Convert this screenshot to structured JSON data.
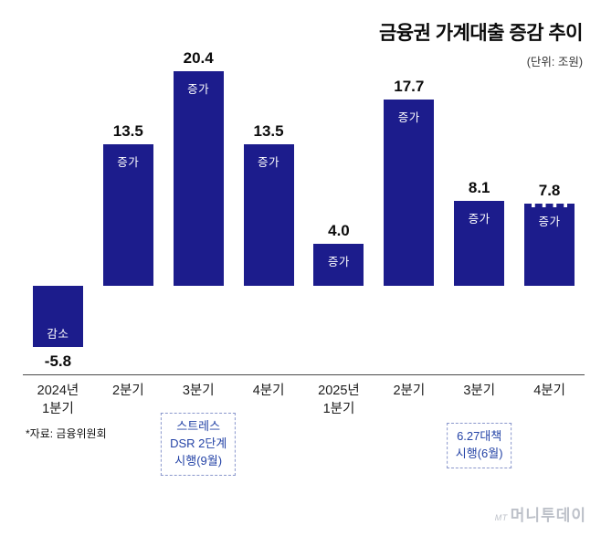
{
  "title": "금융권 가계대출 증감 추이",
  "unit_label": "(단위: 조원)",
  "source_note": "*자료: 금융위원회",
  "watermark_prefix": "MT",
  "watermark_name": "머니투데이",
  "colors": {
    "bar": "#1c1c8c",
    "axis": "#4a4a4a",
    "annotation_text": "#2443a6",
    "annotation_border": "#8a97cc"
  },
  "chart_data": {
    "type": "bar",
    "title": "금융권 가계대출 증감 추이",
    "unit": "조원",
    "xlabel": "",
    "ylabel": "",
    "ylim": [
      -8,
      22
    ],
    "grid": false,
    "legend": false,
    "categories": [
      "2024년\n1분기",
      "2분기",
      "3분기",
      "4분기",
      "2025년\n1분기",
      "2분기",
      "3분기",
      "4분기"
    ],
    "values": [
      -5.8,
      13.5,
      20.4,
      13.5,
      4.0,
      17.7,
      8.1,
      7.8
    ],
    "value_labels": [
      "-5.8",
      "13.5",
      "20.4",
      "13.5",
      "4.0",
      "17.7",
      "8.1",
      "7.8"
    ],
    "bar_inner_labels": [
      "감소",
      "증가",
      "증가",
      "증가",
      "증가",
      "증가",
      "증가",
      "증가"
    ],
    "last_bar_dashed_top": true,
    "annotations": [
      {
        "index": 2,
        "text": "스트레스\nDSR 2단계\n시행(9월)"
      },
      {
        "index": 6,
        "text": "6.27대책\n시행(6월)"
      }
    ]
  }
}
